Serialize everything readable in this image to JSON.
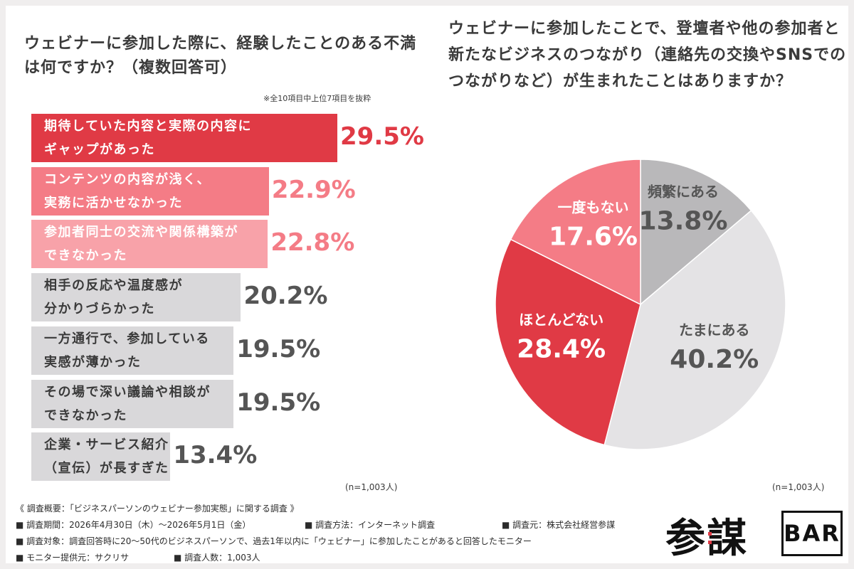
{
  "left": {
    "title": "ウェビナーに参加した際に、経験したことのある不満は何ですか？（複数回答可）",
    "note": "※全10項目中上位7項目を抜粋",
    "n": "(n=1,003人)"
  },
  "right": {
    "title": "ウェビナーに参加したことで、登壇者や他の参加者と新たなビジネスのつながり（連絡先の交換やSNSでのつながりなど）が生まれたことはありますか？",
    "n": "(n=1,003人)"
  },
  "chart_data": [
    {
      "type": "bar",
      "orientation": "horizontal",
      "categories": [
        [
          "期待していた内容と実際の内容に",
          "ギャップがあった"
        ],
        [
          "コンテンツの内容が浅く、",
          "実務に活かせなかった"
        ],
        [
          "参加者同士の交流や関係構築が",
          "できなかった"
        ],
        [
          "相手の反応や温度感が",
          "分かりづらかった"
        ],
        [
          "一方通行で、参加している",
          "実感が薄かった"
        ],
        [
          "その場で深い議論や相談が",
          "できなかった"
        ],
        [
          "企業・サービス紹介",
          "（宣伝）が長すぎた"
        ]
      ],
      "values": [
        29.5,
        22.9,
        22.8,
        20.2,
        19.5,
        19.5,
        13.4
      ],
      "value_labels": [
        "29.5%",
        "22.9%",
        "22.8%",
        "20.2%",
        "19.5%",
        "19.5%",
        "13.4%"
      ],
      "bar_colors": [
        "#e03a45",
        "#f47c86",
        "#f8a2a9",
        "#d9d8da",
        "#d9d8da",
        "#d9d8da",
        "#d9d8da"
      ],
      "label_colors": [
        "#ffffff",
        "#ffffff",
        "#ffffff",
        "#3a3a3a",
        "#3a3a3a",
        "#3a3a3a",
        "#3a3a3a"
      ],
      "value_colors": [
        "#e03a45",
        "#f47c86",
        "#f47c86",
        "#555555",
        "#555555",
        "#555555",
        "#555555"
      ]
    },
    {
      "type": "pie",
      "labels": [
        "頻繁にある",
        "たまにある",
        "ほとんどない",
        "一度もない"
      ],
      "values": [
        13.8,
        40.2,
        28.4,
        17.6
      ],
      "value_labels": [
        "13.8%",
        "40.2%",
        "28.4%",
        "17.6%"
      ],
      "colors": [
        "#b9b8ba",
        "#e4e3e5",
        "#e03a45",
        "#f47c86"
      ],
      "text_colors": [
        "#555555",
        "#555555",
        "#ffffff",
        "#ffffff"
      ]
    }
  ],
  "summary": {
    "heading": "《 調査概要：「ビジネスパーソンのウェビナー参加実態」に関する調査 》",
    "period": "■ 調査期間：2026年4月30日（木）〜2026年5月1日（金）",
    "method": "■ 調査方法：インターネット調査",
    "source": "■ 調査元：株式会社経営参謀",
    "target": "■ 調査対象：調査回答時に20〜50代のビジネスパーソンで、過去1年以内に「ウェビナー」に参加したことがあると回答したモニター",
    "monitor": "■ モニター提供元：サクリサ",
    "count": "■ 調査人数：1,003人"
  },
  "logo": {
    "kanji": "参謀",
    "bar": "BAR"
  }
}
